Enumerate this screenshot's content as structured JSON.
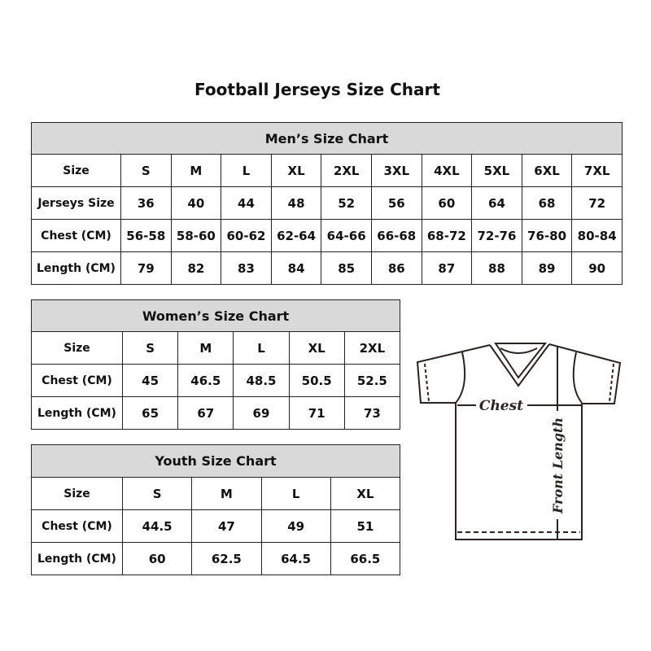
{
  "title": "Football Jerseys Size Chart",
  "men": {
    "heading": "Men’s Size Chart",
    "rows": [
      [
        "Size",
        "S",
        "M",
        "L",
        "XL",
        "2XL",
        "3XL",
        "4XL",
        "5XL",
        "6XL",
        "7XL"
      ],
      [
        "Jerseys Size",
        "36",
        "40",
        "44",
        "48",
        "52",
        "56",
        "60",
        "64",
        "68",
        "72"
      ],
      [
        "Chest (CM)",
        "56-58",
        "58-60",
        "60-62",
        "62-64",
        "64-66",
        "66-68",
        "68-72",
        "72-76",
        "76-80",
        "80-84"
      ],
      [
        "Length (CM)",
        "79",
        "82",
        "83",
        "84",
        "85",
        "86",
        "87",
        "88",
        "89",
        "90"
      ]
    ]
  },
  "women": {
    "heading": "Women’s Size Chart",
    "rows": [
      [
        "Size",
        "S",
        "M",
        "L",
        "XL",
        "2XL"
      ],
      [
        "Chest (CM)",
        "45",
        "46.5",
        "48.5",
        "50.5",
        "52.5"
      ],
      [
        "Length (CM)",
        "65",
        "67",
        "69",
        "71",
        "73"
      ]
    ]
  },
  "youth": {
    "heading": "Youth Size Chart",
    "rows": [
      [
        "Size",
        "S",
        "M",
        "L",
        "XL"
      ],
      [
        "Chest (CM)",
        "44.5",
        "47",
        "49",
        "51"
      ],
      [
        "Length (CM)",
        "60",
        "62.5",
        "64.5",
        "66.5"
      ]
    ]
  },
  "diagram": {
    "chest_label": "Chest",
    "length_label": "Front Length"
  },
  "colors": {
    "header_bg": "#d9d9d9",
    "border": "#222222"
  }
}
